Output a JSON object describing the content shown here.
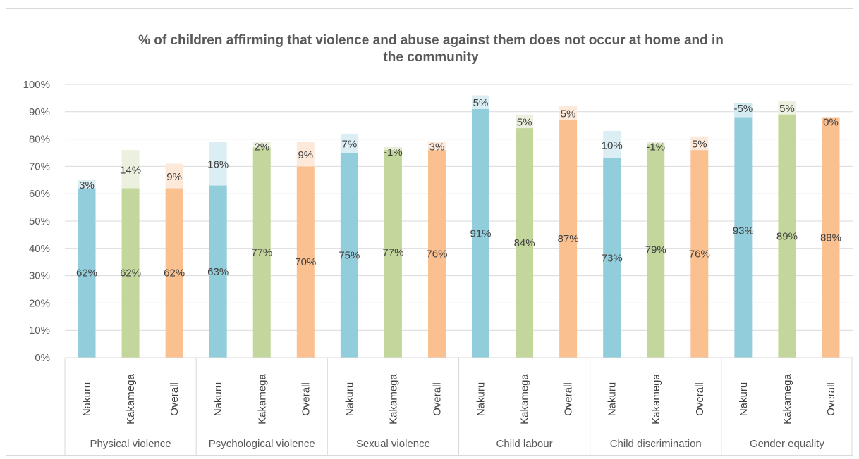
{
  "chart_data": {
    "type": "bar",
    "stacked": true,
    "title_line1": "% of children affirming that violence and abuse against them does not occur at home and in",
    "title_line2": "the community",
    "ylim": [
      0,
      100
    ],
    "yticks": [
      "0%",
      "10%",
      "20%",
      "30%",
      "40%",
      "50%",
      "60%",
      "70%",
      "80%",
      "90%",
      "100%"
    ],
    "grid": true,
    "colors": {
      "Nakuru": {
        "base": "#92cddc",
        "delta": "#daeef3"
      },
      "Kakamega": {
        "base": "#c3d69b",
        "delta": "#ebf1de"
      },
      "Overall": {
        "base": "#fac090",
        "delta": "#fde9d9"
      }
    },
    "groups": [
      {
        "name": "Physical violence",
        "bars": [
          {
            "category": "Nakuru",
            "base": 62,
            "base_label": "62%",
            "delta": 3,
            "delta_label": "3%"
          },
          {
            "category": "Kakamega",
            "base": 62,
            "base_label": "62%",
            "delta": 14,
            "delta_label": "14%"
          },
          {
            "category": "Overall",
            "base": 62,
            "base_label": "62%",
            "delta": 9,
            "delta_label": "9%"
          }
        ]
      },
      {
        "name": "Psychological violence",
        "bars": [
          {
            "category": "Nakuru",
            "base": 63,
            "base_label": "63%",
            "delta": 16,
            "delta_label": "16%"
          },
          {
            "category": "Kakamega",
            "base": 77,
            "base_label": "77%",
            "delta": 2,
            "delta_label": "2%"
          },
          {
            "category": "Overall",
            "base": 70,
            "base_label": "70%",
            "delta": 9,
            "delta_label": "9%"
          }
        ]
      },
      {
        "name": "Sexual violence",
        "bars": [
          {
            "category": "Nakuru",
            "base": 75,
            "base_label": "75%",
            "delta": 7,
            "delta_label": "7%"
          },
          {
            "category": "Kakamega",
            "base": 77,
            "base_label": "77%",
            "delta": -1,
            "delta_label": "-1%"
          },
          {
            "category": "Overall",
            "base": 76,
            "base_label": "76%",
            "delta": 3,
            "delta_label": "3%"
          }
        ]
      },
      {
        "name": "Child labour",
        "bars": [
          {
            "category": "Nakuru",
            "base": 91,
            "base_label": "91%",
            "delta": 5,
            "delta_label": "5%"
          },
          {
            "category": "Kakamega",
            "base": 84,
            "base_label": "84%",
            "delta": 5,
            "delta_label": "5%"
          },
          {
            "category": "Overall",
            "base": 87,
            "base_label": "87%",
            "delta": 5,
            "delta_label": "5%"
          }
        ]
      },
      {
        "name": "Child discrimination",
        "bars": [
          {
            "category": "Nakuru",
            "base": 73,
            "base_label": "73%",
            "delta": 10,
            "delta_label": "10%"
          },
          {
            "category": "Kakamega",
            "base": 79,
            "base_label": "79%",
            "delta": -1,
            "delta_label": "-1%"
          },
          {
            "category": "Overall",
            "base": 76,
            "base_label": "76%",
            "delta": 5,
            "delta_label": "5%"
          }
        ]
      },
      {
        "name": "Gender equality",
        "bars": [
          {
            "category": "Nakuru",
            "base": 93,
            "base_label": "93%",
            "delta": -5,
            "delta_label": "-5%"
          },
          {
            "category": "Kakamega",
            "base": 89,
            "base_label": "89%",
            "delta": 5,
            "delta_label": "5%"
          },
          {
            "category": "Overall",
            "base": 88,
            "base_label": "88%",
            "delta": 0,
            "delta_label": "0%"
          }
        ]
      }
    ]
  }
}
